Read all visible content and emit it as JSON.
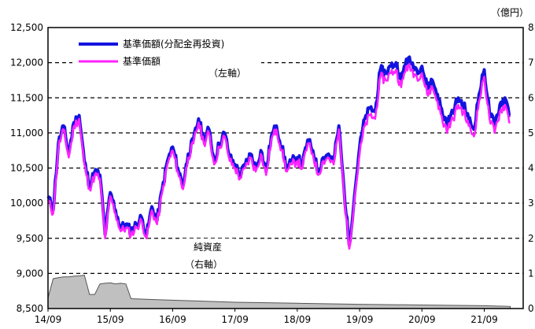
{
  "chart_data": {
    "type": "line",
    "units_label": "（億円）",
    "left_axis_note": "（左軸）",
    "right_axis_note": "（右軸）",
    "area_label": "純資産",
    "x_ticks": [
      "14/09",
      "15/09",
      "16/09",
      "17/09",
      "18/09",
      "19/09",
      "20/09",
      "21/09"
    ],
    "y_left": {
      "min": 8500,
      "max": 12500,
      "ticks": [
        "8,500",
        "9,000",
        "9,500",
        "10,000",
        "10,500",
        "11,000",
        "11,500",
        "12,000",
        "12,500"
      ]
    },
    "y_right": {
      "min": 0,
      "max": 8,
      "ticks": [
        "0",
        "1",
        "2",
        "3",
        "4",
        "5",
        "6",
        "7",
        "8"
      ]
    },
    "grid": "dashed-horizontal",
    "legend_position": "top-left",
    "colors": {
      "reinvested": "#1414e0",
      "nav": "#ff22ff",
      "assets_fill": "#c0c0c0",
      "assets_stroke": "#555555"
    },
    "x": [
      "14/09",
      "14/10",
      "14/11",
      "14/12",
      "15/01",
      "15/02",
      "15/03",
      "15/04",
      "15/05",
      "15/06",
      "15/07",
      "15/08",
      "15/09",
      "15/10",
      "15/11",
      "15/12",
      "16/01",
      "16/02",
      "16/03",
      "16/04",
      "16/05",
      "16/06",
      "16/07",
      "16/08",
      "16/09",
      "16/10",
      "16/11",
      "16/12",
      "17/01",
      "17/02",
      "17/03",
      "17/04",
      "17/05",
      "17/06",
      "17/07",
      "17/08",
      "17/09",
      "17/10",
      "17/11",
      "17/12",
      "18/01",
      "18/02",
      "18/03",
      "18/04",
      "18/05",
      "18/06",
      "18/07",
      "18/08",
      "18/09",
      "18/10",
      "18/11",
      "18/12",
      "19/01",
      "19/02",
      "19/03",
      "19/04",
      "19/05",
      "19/06",
      "19/07",
      "19/08",
      "19/09",
      "19/10",
      "19/11",
      "19/12",
      "20/01",
      "20/02",
      "20/03",
      "20/04",
      "20/05",
      "20/06",
      "20/07",
      "20/08",
      "20/09",
      "20/10",
      "20/11",
      "20/12",
      "21/01",
      "21/02",
      "21/03",
      "21/04",
      "21/05",
      "21/06",
      "21/07",
      "21/08",
      "21/09",
      "21/10",
      "21/11",
      "21/12",
      "22/01",
      "22/02"
    ],
    "series": [
      {
        "name": "基準価額(分配金再投資)",
        "values": [
          10100,
          9900,
          10850,
          11100,
          10700,
          11150,
          11250,
          10600,
          10250,
          10450,
          10400,
          9550,
          10150,
          9900,
          9650,
          9700,
          9600,
          9700,
          9800,
          9550,
          9950,
          9750,
          10200,
          10600,
          10800,
          10500,
          10250,
          10700,
          10900,
          11200,
          10900,
          11050,
          10600,
          10850,
          11000,
          10650,
          10550,
          10400,
          10550,
          10700,
          10500,
          10750,
          10450,
          10950,
          11100,
          10800,
          10500,
          10600,
          10650,
          10550,
          10900,
          10750,
          10450,
          10650,
          10700,
          10600,
          11100,
          10200,
          9400,
          10100,
          10800,
          11200,
          11350,
          11300,
          11900,
          11850,
          11950,
          12000,
          11750,
          12050,
          12000,
          11900,
          11950,
          11650,
          11750,
          11550,
          11250,
          11150,
          11300,
          11500,
          11400,
          11200,
          11050,
          11550,
          11900,
          11300,
          11100,
          11400,
          11500,
          11250
        ]
      },
      {
        "name": "基準価額",
        "values": [
          10050,
          9850,
          10800,
          11050,
          10650,
          11100,
          11200,
          10550,
          10200,
          10400,
          10350,
          9500,
          10100,
          9850,
          9600,
          9650,
          9550,
          9650,
          9750,
          9500,
          9900,
          9700,
          10150,
          10550,
          10750,
          10450,
          10200,
          10650,
          10850,
          11150,
          10850,
          11000,
          10550,
          10800,
          10950,
          10600,
          10500,
          10350,
          10500,
          10650,
          10450,
          10700,
          10400,
          10900,
          11050,
          10750,
          10450,
          10550,
          10600,
          10500,
          10850,
          10700,
          10400,
          10600,
          10650,
          10550,
          11050,
          10150,
          9350,
          10050,
          10700,
          11100,
          11250,
          11200,
          11800,
          11750,
          11850,
          11900,
          11650,
          11950,
          11900,
          11800,
          11850,
          11550,
          11650,
          11450,
          11150,
          11050,
          11200,
          11400,
          11300,
          11100,
          10950,
          11450,
          11800,
          11200,
          11000,
          11300,
          11400,
          11150
        ]
      }
    ],
    "net_assets": {
      "x": [
        "14/09",
        "14/10",
        "14/11",
        "14/12",
        "15/01",
        "15/02",
        "15/03",
        "15/04",
        "15/05",
        "15/06",
        "15/07",
        "15/08",
        "15/09",
        "15/10",
        "15/11",
        "15/12",
        "16/01",
        "16/06",
        "17/01",
        "17/09",
        "18/09",
        "19/09",
        "20/09",
        "21/09",
        "22/02"
      ],
      "values": [
        0.3,
        0.85,
        0.88,
        0.9,
        0.9,
        0.92,
        0.93,
        0.95,
        0.4,
        0.4,
        0.7,
        0.72,
        0.73,
        0.7,
        0.72,
        0.7,
        0.28,
        0.25,
        0.22,
        0.18,
        0.15,
        0.12,
        0.1,
        0.08,
        0.06
      ]
    },
    "legend": [
      "基準価額(分配金再投資)",
      "基準価額"
    ]
  }
}
